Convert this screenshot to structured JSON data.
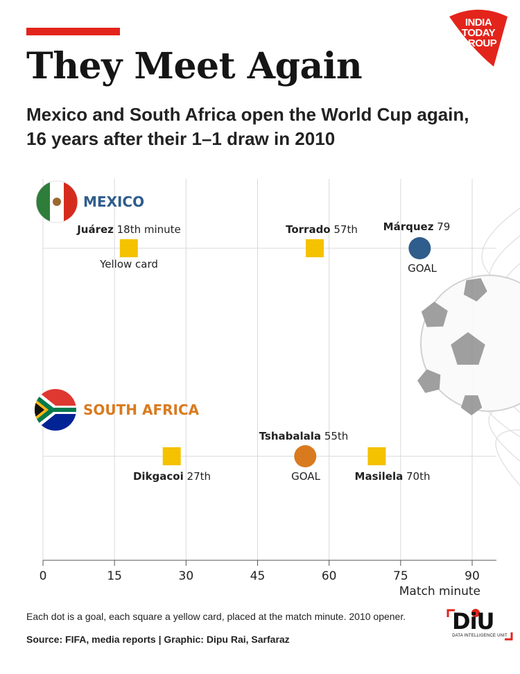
{
  "header": {
    "title": "They Meet Again",
    "subtitle": "Mexico and South Africa open the World Cup again, 16 years after their 1–1 draw in 2010",
    "logo_lines": [
      "INDIA",
      "TODAY",
      "GROUP"
    ]
  },
  "colors": {
    "accent_red": "#e3241b",
    "mexico_blue": "#2f5d8c",
    "south_africa_orange": "#d97a1f",
    "yellow_card": "#f5c200",
    "gridline": "#d9d9d9"
  },
  "chart_data": {
    "type": "scatter",
    "xlabel": "Match minute",
    "xlim": [
      0,
      95
    ],
    "xticks": [
      0,
      15,
      30,
      45,
      60,
      75,
      90
    ],
    "grid": true,
    "teams": [
      {
        "name": "MEXICO",
        "flag_icon": "mexico-flag-icon",
        "color": "#2f5d8c",
        "events": [
          {
            "type": "yellow_card",
            "player": "Juárez",
            "minute": 18,
            "minute_text": "18th minute",
            "caption": "Yellow card"
          },
          {
            "type": "yellow_card",
            "player": "Torrado",
            "minute": 57,
            "minute_text": "57th",
            "caption": ""
          },
          {
            "type": "goal",
            "player": "Márquez",
            "minute": 79,
            "minute_text": "79",
            "caption": "GOAL"
          }
        ]
      },
      {
        "name": "SOUTH AFRICA",
        "flag_icon": "south-africa-flag-icon",
        "color": "#d97a1f",
        "events": [
          {
            "type": "yellow_card",
            "player": "Dikgacoi",
            "minute": 27,
            "minute_text": "27th",
            "caption": ""
          },
          {
            "type": "goal",
            "player": "Tshabalala",
            "minute": 55,
            "minute_text": "55th",
            "caption": "GOAL"
          },
          {
            "type": "yellow_card",
            "player": "Masilela",
            "minute": 70,
            "minute_text": "70th",
            "caption": ""
          }
        ]
      }
    ]
  },
  "footer": {
    "note": "Each dot is a goal, each square a yellow card, placed at the match minute. 2010 opener.",
    "source": "Source: FIFA, media reports | Graphic: Dipu Rai, Sarfaraz",
    "badge_main": "DiU",
    "badge_sub": "DATA INTELLIGENCE UNIT"
  }
}
